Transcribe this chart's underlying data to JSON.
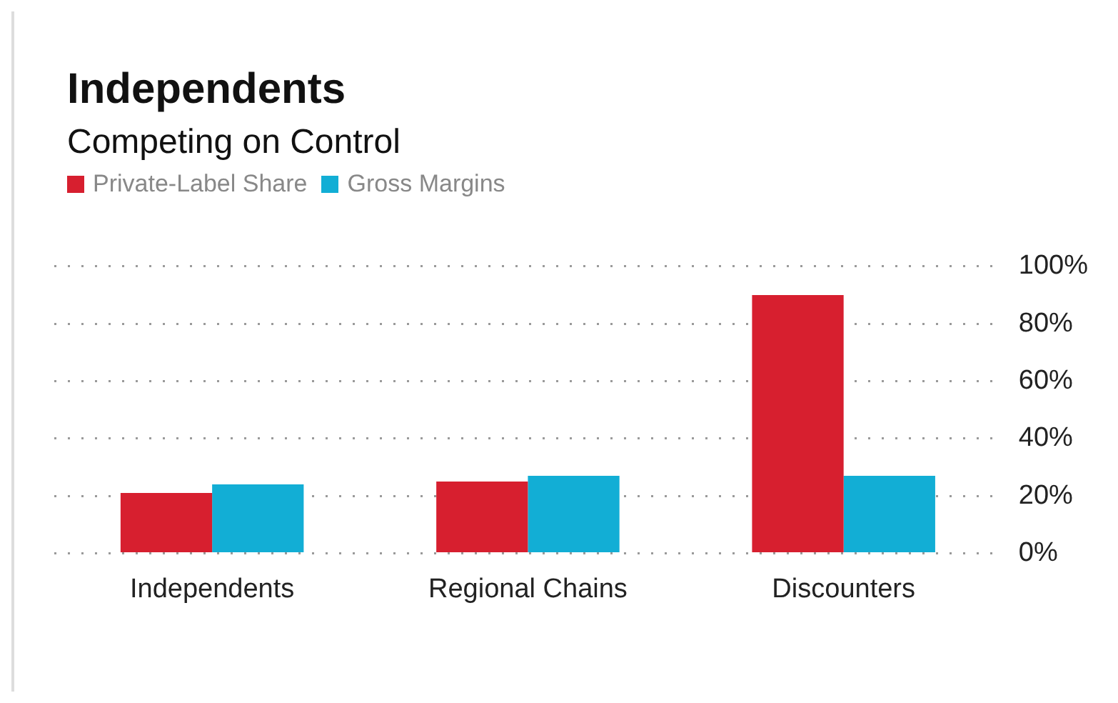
{
  "chart_data": {
    "type": "bar",
    "title": "Independents",
    "subtitle": "Competing on Control",
    "categories": [
      "Independents",
      "Regional Chains",
      "Discounters"
    ],
    "series": [
      {
        "name": "Private-Label Share",
        "color": "#d71f2f",
        "values": [
          21,
          25,
          90
        ]
      },
      {
        "name": "Gross Margins",
        "color": "#12aed5",
        "values": [
          24,
          27,
          27
        ]
      }
    ],
    "ylim": [
      0,
      100
    ],
    "yticks": [
      {
        "value": 0,
        "label": "0%"
      },
      {
        "value": 20,
        "label": "20%"
      },
      {
        "value": 40,
        "label": "40%"
      },
      {
        "value": 60,
        "label": "60%"
      },
      {
        "value": 80,
        "label": "80%"
      },
      {
        "value": 100,
        "label": "100%"
      }
    ],
    "grid": "y",
    "legend": "top left"
  }
}
